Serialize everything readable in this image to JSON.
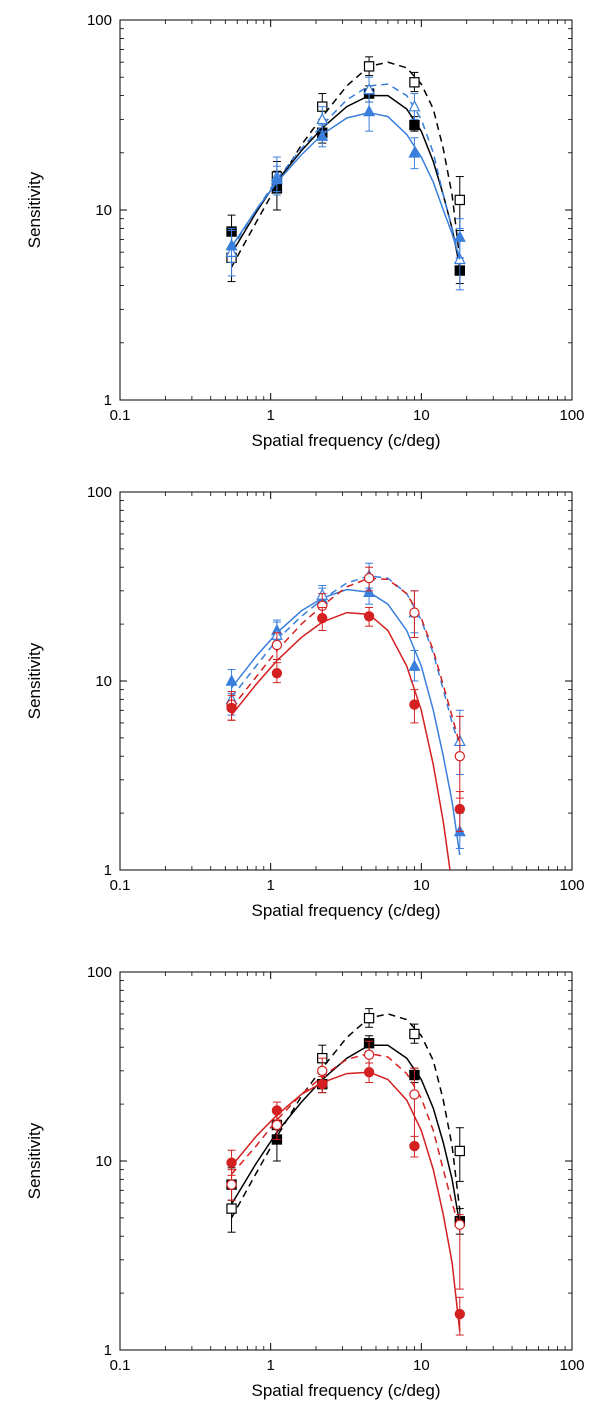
{
  "chart_data": [
    {
      "type": "scatter",
      "xlabel": "Spatial frequency (c/deg)",
      "ylabel": "Sensitivity",
      "xscale": "log",
      "yscale": "log",
      "xlim": [
        0.1,
        100
      ],
      "ylim": [
        1,
        100
      ],
      "xticks": [
        "0.1",
        "1",
        "10",
        "100"
      ],
      "yticks": [
        "1",
        "10",
        "100"
      ],
      "grid": false,
      "legend": "none",
      "series": [
        {
          "color": "#000000",
          "marker": "square-open",
          "fit": "dashed",
          "x": [
            0.55,
            1.1,
            2.2,
            4.5,
            9,
            18
          ],
          "y": [
            5.6,
            15,
            35,
            57,
            47,
            11.3
          ],
          "yerr": [
            [
              4.2,
              7.4
            ],
            [
              12.5,
              18
            ],
            [
              30,
              41
            ],
            [
              51,
              64
            ],
            [
              42,
              53
            ],
            [
              7.8,
              15
            ]
          ],
          "fit_curve": {
            "x": [
              0.55,
              0.8,
              1.1,
              1.6,
              2.2,
              3.2,
              4.5,
              6.0,
              8.0,
              10,
              12,
              14,
              16,
              18
            ],
            "y": [
              5.0,
              8.6,
              13.5,
              22,
              31,
              45,
              57,
              60,
              56,
              46,
              34,
              21,
              12,
              5.5
            ]
          }
        },
        {
          "color": "#000000",
          "marker": "square-filled",
          "fit": "solid",
          "x": [
            0.55,
            1.1,
            2.2,
            4.5,
            9,
            18
          ],
          "y": [
            7.7,
            13,
            25.5,
            41,
            28,
            4.8
          ],
          "yerr": [
            [
              6.4,
              9.4
            ],
            [
              10,
              16
            ],
            [
              22.5,
              29
            ],
            [
              37,
              45
            ],
            [
              26,
              31
            ],
            [
              4.1,
              5.6
            ]
          ],
          "fit_curve": {
            "x": [
              0.55,
              0.8,
              1.1,
              1.6,
              2.2,
              3.2,
              4.5,
              6.0,
              8.0,
              10,
              12,
              14,
              16,
              18
            ],
            "y": [
              5.9,
              9.7,
              14.2,
              20.5,
              27,
              35,
              40,
              40,
              34,
              26,
              18,
              12,
              8,
              5
            ]
          }
        },
        {
          "color": "#3a7fdc",
          "marker": "triangle-open",
          "fit": "dashed",
          "x": [
            0.55,
            1.1,
            2.2,
            4.5,
            9,
            18
          ],
          "y": [
            6,
            15,
            30,
            43,
            35,
            5.5
          ],
          "yerr": [
            [
              4.5,
              7.8
            ],
            [
              12,
              19
            ],
            [
              26,
              35
            ],
            [
              37,
              50
            ],
            [
              30,
              41
            ],
            [
              3.8,
              8
            ]
          ],
          "fit_curve": {
            "x": [
              0.55,
              0.8,
              1.1,
              1.6,
              2.2,
              3.2,
              4.5,
              6.0,
              8.0,
              10,
              12,
              14,
              16,
              18
            ],
            "y": [
              6.2,
              10,
              14.5,
              21,
              28,
              38,
              45,
              46,
              40,
              30,
              20,
              12,
              8,
              5.5
            ]
          }
        },
        {
          "color": "#3a7fdc",
          "marker": "triangle-filled",
          "fit": "solid",
          "x": [
            0.55,
            1.1,
            2.2,
            4.5,
            9,
            18
          ],
          "y": [
            6.5,
            14.5,
            24.5,
            33,
            20,
            7.2
          ],
          "yerr": [
            [
              5.3,
              8
            ],
            [
              12.5,
              17
            ],
            [
              21.5,
              28
            ],
            [
              26,
              41
            ],
            [
              16.5,
              24
            ],
            [
              5.6,
              9
            ]
          ],
          "fit_curve": {
            "x": [
              0.55,
              0.8,
              1.1,
              1.6,
              2.2,
              3.2,
              4.5,
              6.0,
              8.0,
              10,
              12,
              14,
              16,
              18
            ],
            "y": [
              6.4,
              10,
              14,
              19.5,
              25,
              30.5,
              32.5,
              31,
              25,
              19,
              14,
              10,
              7.5,
              5.5
            ]
          }
        }
      ]
    },
    {
      "type": "scatter",
      "xlabel": "Spatial frequency (c/deg)",
      "ylabel": "Sensitivity",
      "xscale": "log",
      "yscale": "log",
      "xlim": [
        0.1,
        100
      ],
      "ylim": [
        1,
        100
      ],
      "xticks": [
        "0.1",
        "1",
        "10",
        "100"
      ],
      "yticks": [
        "1",
        "10",
        "100"
      ],
      "grid": false,
      "legend": "none",
      "series": [
        {
          "color": "#3a7fdc",
          "marker": "triangle-filled",
          "fit": "solid",
          "x": [
            0.55,
            1.1,
            2.2,
            4.5,
            9,
            18
          ],
          "y": [
            10,
            18.5,
            27,
            29.5,
            12,
            1.6
          ],
          "yerr": [
            [
              8.6,
              11.5
            ],
            [
              16.5,
              21
            ],
            [
              24,
              31
            ],
            [
              25.5,
              34
            ],
            [
              10,
              14.5
            ],
            [
              1.3,
              2.0
            ]
          ],
          "fit_curve": {
            "x": [
              0.55,
              0.8,
              1.1,
              1.6,
              2.2,
              3.2,
              4.5,
              6.0,
              8.0,
              10,
              12,
              14,
              16,
              18
            ],
            "y": [
              9.2,
              13.5,
              18,
              23.5,
              27.5,
              30.5,
              29.5,
              25.5,
              18.5,
              12,
              7,
              4,
              2.3,
              1.2
            ]
          }
        },
        {
          "color": "#3a7fdc",
          "marker": "triangle-open",
          "fit": "dashed",
          "x": [
            0.55,
            1.1,
            2.2,
            4.5,
            9,
            18
          ],
          "y": [
            8,
            17.5,
            28.5,
            36,
            23,
            4.8
          ],
          "yerr": [
            [
              6.6,
              9.6
            ],
            [
              15,
              20.5
            ],
            [
              25,
              32
            ],
            [
              31,
              42
            ],
            [
              18,
              30
            ],
            [
              3.2,
              7
            ]
          ],
          "fit_curve": {
            "x": [
              0.55,
              0.8,
              1.1,
              1.6,
              2.2,
              3.2,
              4.5,
              6.0,
              8.0,
              10,
              12,
              14,
              16,
              18
            ],
            "y": [
              8.2,
              12,
              16.5,
              22,
              27,
              33,
              36,
              35,
              29,
              21,
              14,
              9,
              6,
              4.5
            ]
          }
        },
        {
          "color": "#d42020",
          "marker": "circle-open",
          "fit": "dashed",
          "x": [
            0.55,
            1.1,
            2.2,
            4.5,
            9,
            18
          ],
          "y": [
            7.5,
            15.5,
            25,
            35,
            23,
            4
          ],
          "yerr": [
            [
              6.2,
              8.8
            ],
            [
              13,
              18
            ],
            [
              21.5,
              29
            ],
            [
              30,
              40
            ],
            [
              17,
              30
            ],
            [
              2.4,
              6.5
            ]
          ],
          "fit_curve": {
            "x": [
              0.55,
              0.8,
              1.1,
              1.6,
              2.2,
              3.2,
              4.5,
              6.0,
              8.0,
              10,
              12,
              14,
              16,
              18
            ],
            "y": [
              7.2,
              10.5,
              14.5,
              20,
              25,
              31.5,
              35,
              34.5,
              29,
              21.5,
              14.5,
              9.5,
              6.5,
              4.6
            ]
          }
        },
        {
          "color": "#d42020",
          "marker": "circle-filled",
          "fit": "solid",
          "x": [
            0.55,
            1.1,
            2.2,
            4.5,
            9,
            18
          ],
          "y": [
            7.2,
            11,
            21.5,
            22,
            7.5,
            2.1
          ],
          "yerr": [
            [
              6.2,
              8.4
            ],
            [
              9.8,
              12.5
            ],
            [
              18.5,
              24.5
            ],
            [
              19.5,
              24.5
            ],
            [
              6,
              9
            ],
            [
              1.6,
              2.6
            ]
          ],
          "fit_curve": {
            "x": [
              0.55,
              0.8,
              1.1,
              1.6,
              2.2,
              3.2,
              4.5,
              6.0,
              8.0,
              10,
              12,
              14,
              15.5
            ],
            "y": [
              6.6,
              9.6,
              12.8,
              17,
              20.5,
              23,
              22.5,
              18.5,
              12,
              7,
              3.6,
              1.8,
              1.0
            ]
          }
        }
      ]
    },
    {
      "type": "scatter",
      "xlabel": "Spatial frequency (c/deg)",
      "ylabel": "Sensitivity",
      "xscale": "log",
      "yscale": "log",
      "xlim": [
        0.1,
        100
      ],
      "ylim": [
        1,
        100
      ],
      "xticks": [
        "0.1",
        "1",
        "10",
        "100"
      ],
      "yticks": [
        "1",
        "10",
        "100"
      ],
      "grid": false,
      "legend": "none",
      "series": [
        {
          "color": "#000000",
          "marker": "square-open",
          "fit": "dashed",
          "x": [
            0.55,
            1.1,
            2.2,
            4.5,
            9,
            18
          ],
          "y": [
            5.6,
            15.5,
            35,
            57,
            47,
            11.3
          ],
          "yerr": [
            [
              4.2,
              7.4
            ],
            [
              12.5,
              18.5
            ],
            [
              30,
              41
            ],
            [
              51,
              64
            ],
            [
              42,
              53
            ],
            [
              7.8,
              15
            ]
          ],
          "fit_curve": {
            "x": [
              0.55,
              0.8,
              1.1,
              1.6,
              2.2,
              3.2,
              4.5,
              6.0,
              8.0,
              10,
              12,
              14,
              16,
              18
            ],
            "y": [
              5.0,
              8.6,
              13.5,
              22,
              31,
              45,
              57,
              60,
              56,
              46,
              34,
              21,
              12,
              5.5
            ]
          }
        },
        {
          "color": "#000000",
          "marker": "square-filled",
          "fit": "solid",
          "x": [
            0.55,
            1.1,
            2.2,
            4.5,
            9,
            18
          ],
          "y": [
            7.5,
            13,
            25.5,
            42,
            28.5,
            4.8
          ],
          "yerr": [
            [
              6.2,
              9.2
            ],
            [
              10,
              16
            ],
            [
              23,
              29
            ],
            [
              38,
              46
            ],
            [
              26,
              31
            ],
            [
              4.1,
              5.6
            ]
          ],
          "fit_curve": {
            "x": [
              0.55,
              0.8,
              1.1,
              1.6,
              2.2,
              3.2,
              4.5,
              6.0,
              8.0,
              10,
              12,
              14,
              16,
              18
            ],
            "y": [
              5.9,
              9.7,
              14.2,
              20.5,
              27,
              35,
              41,
              41,
              35,
              27,
              19,
              12.5,
              8,
              4.6
            ]
          }
        },
        {
          "color": "#d42020",
          "marker": "circle-open",
          "fit": "dashed",
          "x": [
            0.55,
            1.1,
            2.2,
            4.5,
            9,
            18
          ],
          "y": [
            7.5,
            15.5,
            30,
            36.5,
            22.5,
            4.6
          ],
          "yerr": [
            [
              6.2,
              9
            ],
            [
              13,
              18.5
            ],
            [
              25,
              35
            ],
            [
              30,
              43
            ],
            [
              12,
              31
            ],
            [
              2.1,
              5.2
            ]
          ],
          "fit_curve": {
            "x": [
              0.55,
              0.8,
              1.1,
              1.6,
              2.2,
              3.2,
              4.5,
              6.0,
              8.0,
              10,
              12,
              14,
              16,
              18
            ],
            "y": [
              8.5,
              12,
              16.5,
              22.5,
              28,
              34.5,
              37,
              35.5,
              29,
              21.5,
              14.5,
              9,
              6,
              4.4
            ]
          }
        },
        {
          "color": "#d42020",
          "marker": "circle-filled",
          "fit": "solid",
          "x": [
            0.55,
            1.1,
            2.2,
            4.5,
            9,
            18
          ],
          "y": [
            9.8,
            18.5,
            25.5,
            29.5,
            12,
            1.55
          ],
          "yerr": [
            [
              8.4,
              11.4
            ],
            [
              16.5,
              20.5
            ],
            [
              23,
              28
            ],
            [
              26,
              33
            ],
            [
              10.5,
              13.5
            ],
            [
              1.2,
              1.9
            ]
          ],
          "fit_curve": {
            "x": [
              0.55,
              0.8,
              1.1,
              1.6,
              2.2,
              3.2,
              4.5,
              6.0,
              8.0,
              10,
              12,
              14,
              16,
              18
            ],
            "y": [
              9.4,
              13.5,
              17.5,
              22.5,
              26,
              29,
              29.5,
              27,
              21,
              14.5,
              9,
              5.2,
              2.9,
              1.25
            ]
          }
        }
      ]
    }
  ]
}
